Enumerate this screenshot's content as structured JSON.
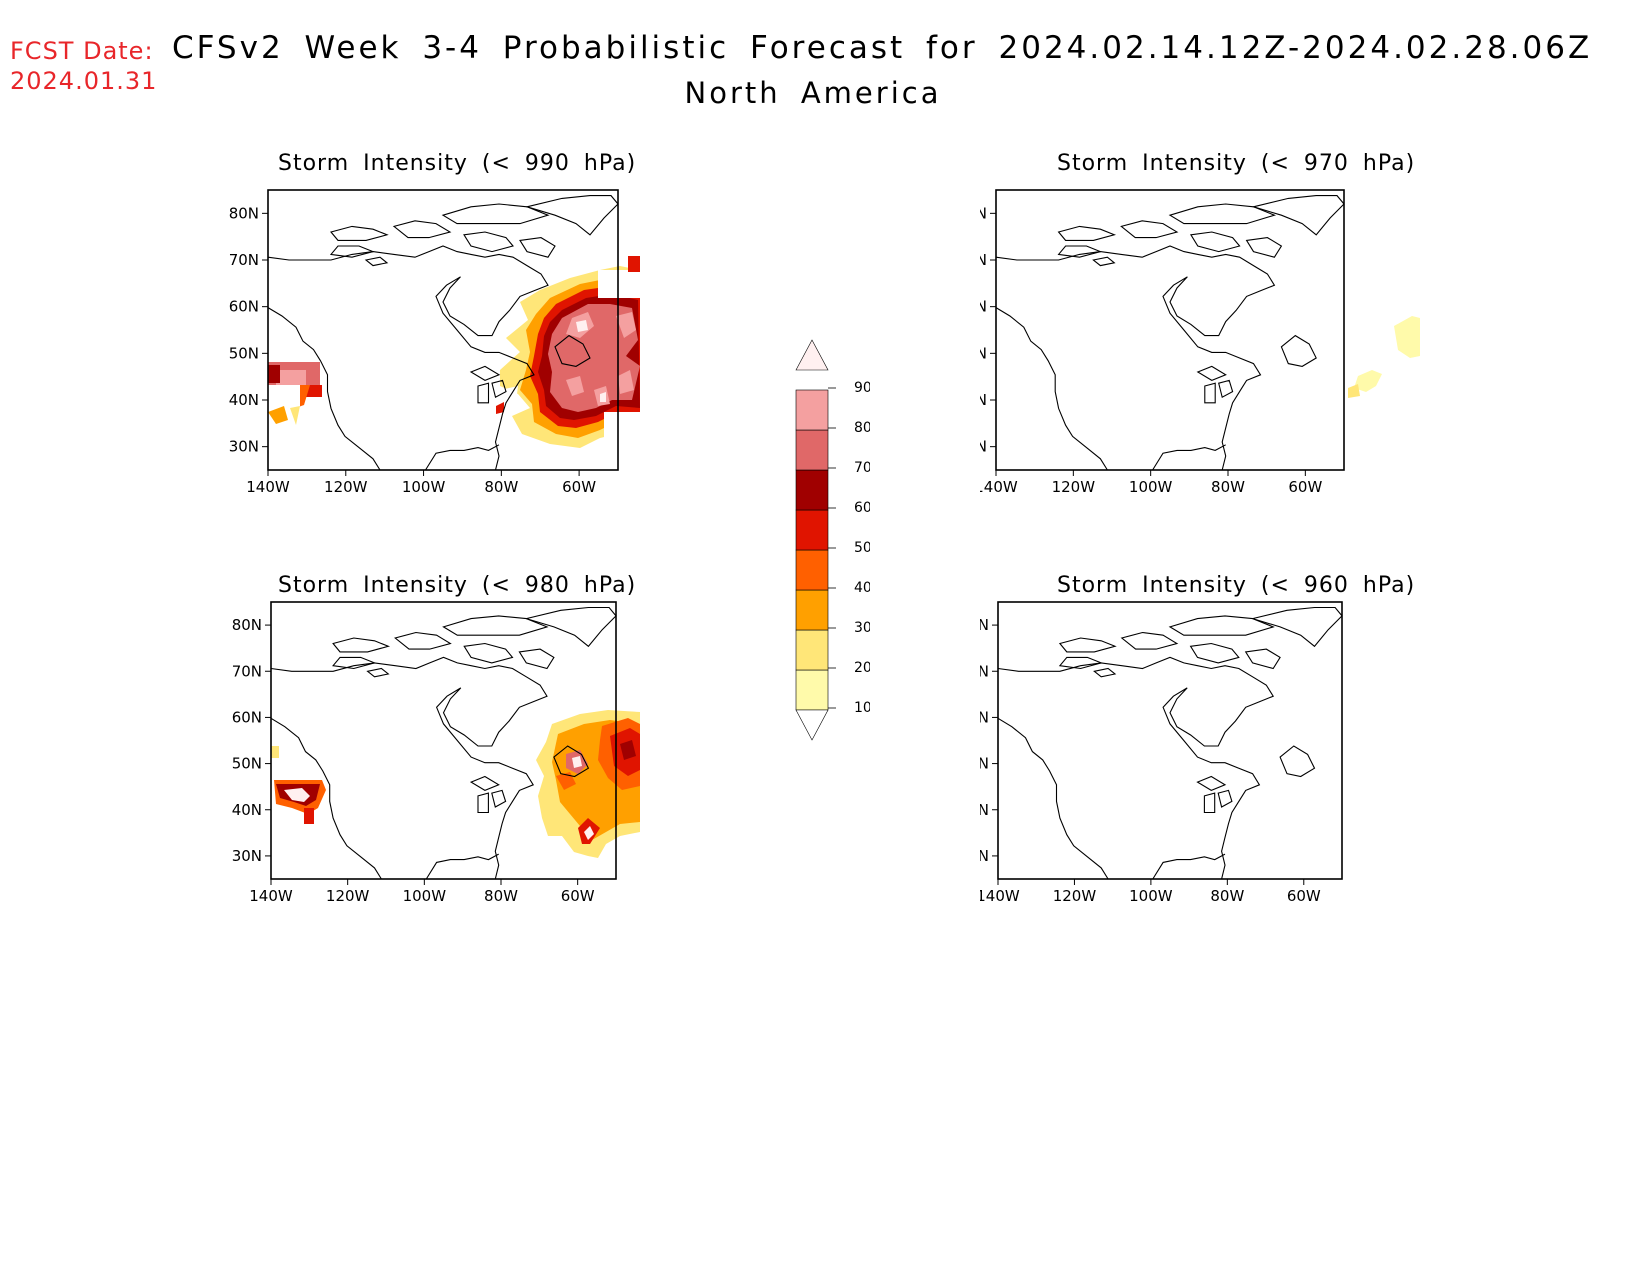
{
  "header": {
    "fcst_label": "FCST Date:",
    "fcst_date": "2024.01.31",
    "title": "CFSv2 Week 3-4 Probabilistic Forecast for 2024.02.14.12Z-2024.02.28.06Z",
    "region": "North America"
  },
  "axes": {
    "lat_labels": [
      "80N",
      "70N",
      "60N",
      "50N",
      "40N",
      "30N"
    ],
    "lon_labels": [
      "140W",
      "120W",
      "100W",
      "80W",
      "60W"
    ],
    "lat_values": [
      80,
      70,
      60,
      50,
      40,
      30
    ],
    "lon_values": [
      -140,
      -120,
      -100,
      -80,
      -60
    ]
  },
  "panels": [
    {
      "title": "Storm Intensity (< 990 hPa)",
      "threshold_hpa": 990
    },
    {
      "title": "Storm Intensity (< 970 hPa)",
      "threshold_hpa": 970
    },
    {
      "title": "Storm Intensity (< 980 hPa)",
      "threshold_hpa": 980
    },
    {
      "title": "Storm Intensity (< 960 hPa)",
      "threshold_hpa": 960
    }
  ],
  "colorbar": {
    "labels": [
      "90",
      "80",
      "70",
      "60",
      "50",
      "40",
      "30",
      "20",
      "10"
    ],
    "levels": [
      10,
      20,
      30,
      40,
      50,
      60,
      70,
      80,
      90
    ],
    "colors": [
      "#fffaaa",
      "#ffe678",
      "#ffa000",
      "#ff6000",
      "#e01400",
      "#a00000",
      "#e06868",
      "#f4a0a0",
      "#fff0f0"
    ]
  }
}
